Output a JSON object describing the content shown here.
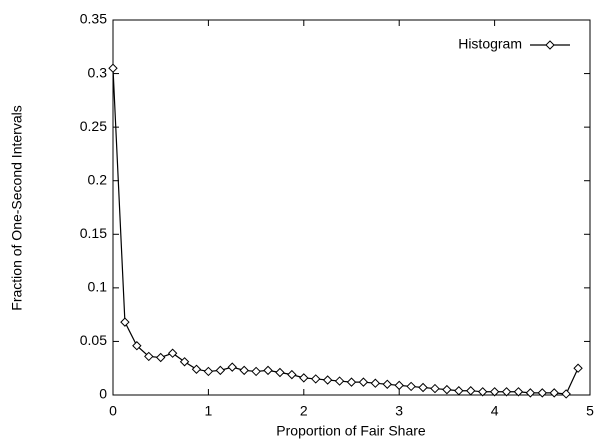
{
  "chart_data": {
    "type": "line",
    "xlabel": "Proportion of Fair Share",
    "ylabel": "Fraction of One-Second Intervals",
    "x": [
      0,
      0.125,
      0.25,
      0.375,
      0.5,
      0.625,
      0.75,
      0.875,
      1.0,
      1.125,
      1.25,
      1.375,
      1.5,
      1.625,
      1.75,
      1.875,
      2.0,
      2.125,
      2.25,
      2.375,
      2.5,
      2.625,
      2.75,
      2.875,
      3.0,
      3.125,
      3.25,
      3.375,
      3.5,
      3.625,
      3.75,
      3.875,
      4.0,
      4.125,
      4.25,
      4.375,
      4.5,
      4.625,
      4.75,
      4.875
    ],
    "series": [
      {
        "name": "Histogram",
        "color": "#000000",
        "values": [
          0.305,
          0.068,
          0.046,
          0.036,
          0.035,
          0.039,
          0.031,
          0.024,
          0.022,
          0.023,
          0.026,
          0.023,
          0.022,
          0.023,
          0.021,
          0.019,
          0.016,
          0.015,
          0.014,
          0.013,
          0.012,
          0.012,
          0.011,
          0.01,
          0.009,
          0.008,
          0.007,
          0.006,
          0.005,
          0.004,
          0.004,
          0.003,
          0.003,
          0.003,
          0.003,
          0.002,
          0.002,
          0.002,
          0.001,
          0.025
        ]
      }
    ],
    "xlim": [
      0,
      5
    ],
    "xticks": [
      0,
      1,
      2,
      3,
      4,
      5
    ],
    "ylim": [
      0,
      0.35
    ],
    "yticks": [
      0,
      0.05,
      0.1,
      0.15,
      0.2,
      0.25,
      0.3,
      0.35
    ],
    "legend": "upper right"
  }
}
